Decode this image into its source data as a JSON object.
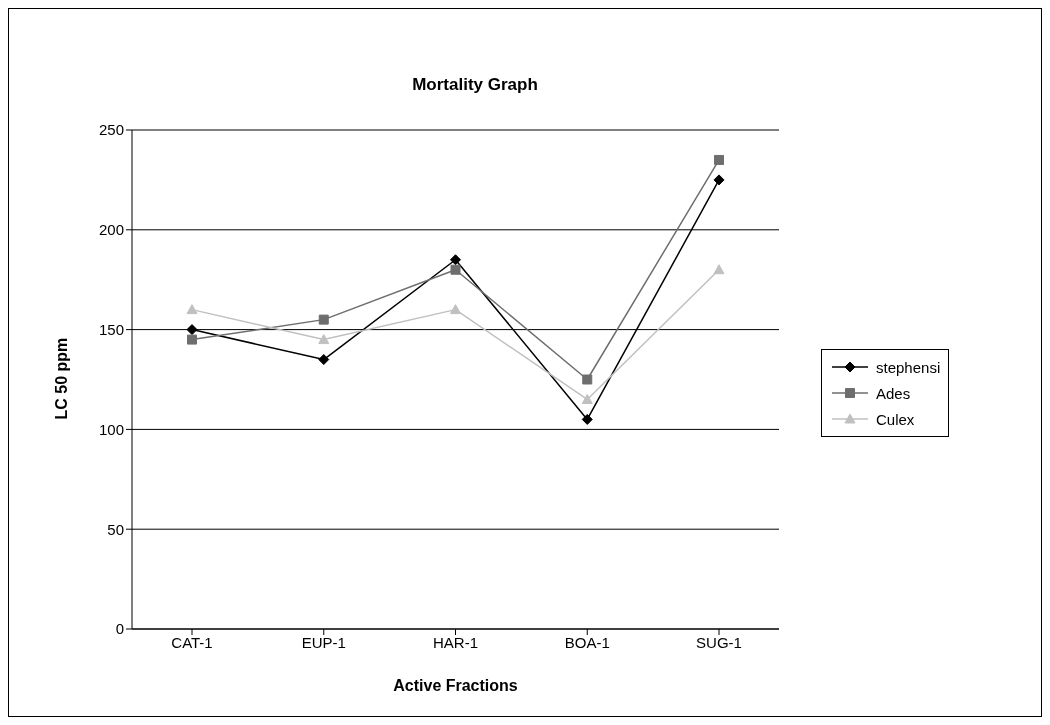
{
  "chart_data": {
    "type": "line",
    "title": "Mortality Graph",
    "xlabel": "Active Fractions",
    "ylabel": "LC 50 ppm",
    "categories": [
      "CAT-1",
      "EUP-1",
      "HAR-1",
      "BOA-1",
      "SUG-1"
    ],
    "series": [
      {
        "name": "stephensi",
        "color": "#000000",
        "marker": "diamond",
        "values": [
          150,
          135,
          185,
          105,
          225
        ]
      },
      {
        "name": "Ades",
        "color": "#6e6e6e",
        "marker": "square",
        "values": [
          145,
          155,
          180,
          125,
          235
        ]
      },
      {
        "name": "Culex",
        "color": "#c0c0c0",
        "marker": "triangle",
        "values": [
          160,
          145,
          160,
          115,
          180
        ]
      }
    ],
    "ylim": [
      0,
      250
    ],
    "yticks": [
      0,
      50,
      100,
      150,
      200,
      250
    ],
    "grid": "y",
    "legend": "right"
  }
}
